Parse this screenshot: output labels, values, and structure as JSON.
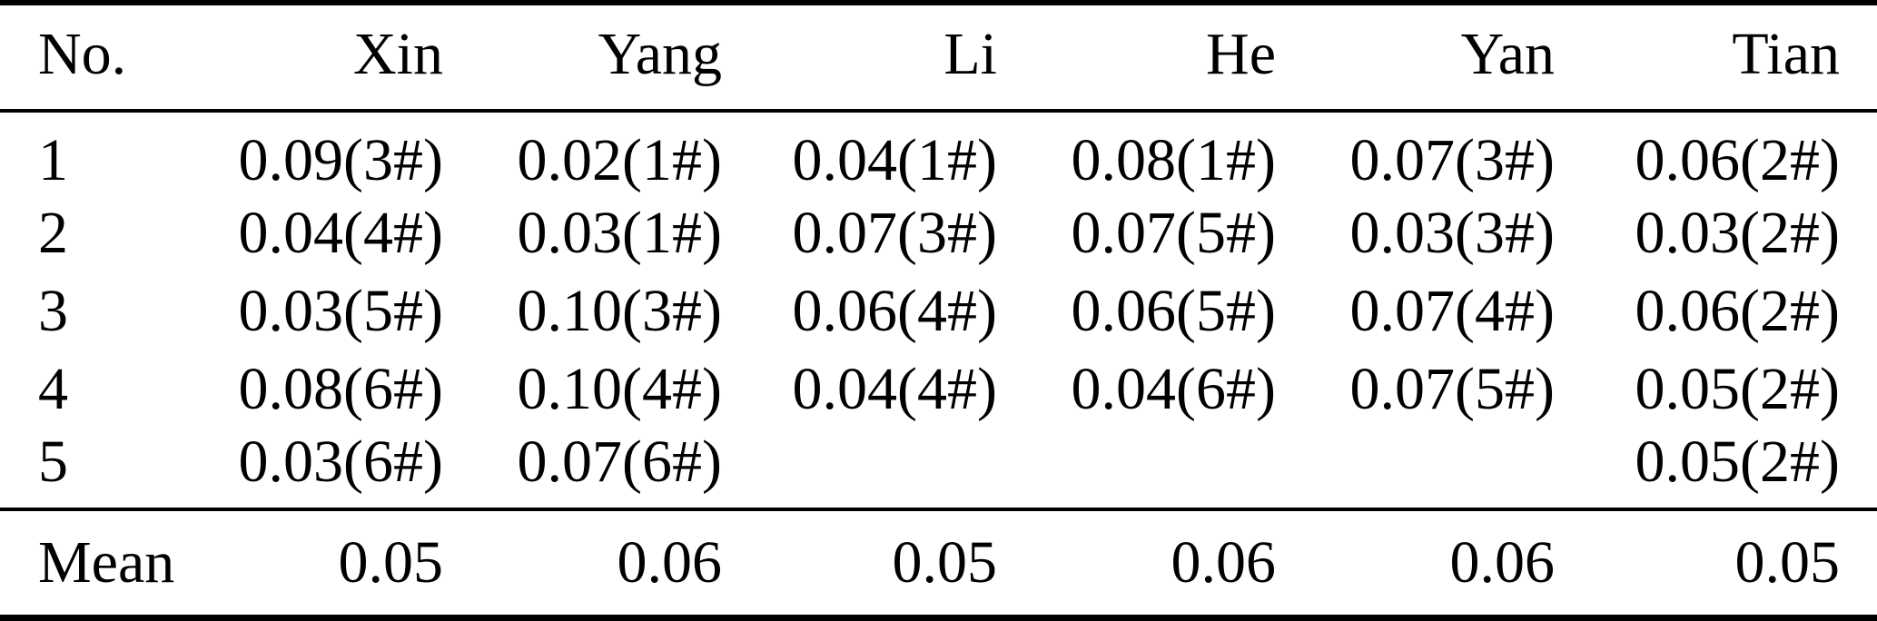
{
  "chart_data": {
    "type": "table",
    "title": "",
    "columns": [
      "No.",
      "Xin",
      "Yang",
      "Li",
      "He",
      "Yan",
      "Tian"
    ],
    "rows": [
      [
        "1",
        "0.09(3#)",
        "0.02(1#)",
        "0.04(1#)",
        "0.08(1#)",
        "0.07(3#)",
        "0.06(2#)"
      ],
      [
        "2",
        "0.04(4#)",
        "0.03(1#)",
        "0.07(3#)",
        "0.07(5#)",
        "0.03(3#)",
        "0.03(2#)"
      ],
      [
        "3",
        "0.03(5#)",
        "0.10(3#)",
        "0.06(4#)",
        "0.06(5#)",
        "0.07(4#)",
        "0.06(2#)"
      ],
      [
        "4",
        "0.08(6#)",
        "0.10(4#)",
        "0.04(4#)",
        "0.04(6#)",
        "0.07(5#)",
        "0.05(2#)"
      ],
      [
        "5",
        "0.03(6#)",
        "0.07(6#)",
        "",
        "",
        "",
        "0.05(2#)"
      ]
    ],
    "footer": [
      "Mean",
      "0.05",
      "0.06",
      "0.05",
      "0.06",
      "0.06",
      "0.05"
    ],
    "layout_hints": {
      "first_column_align": "left",
      "data_columns_align": "right",
      "grid": "horizontal-rules-only"
    }
  },
  "colors": {
    "text": "#000000",
    "background": "#ffffff",
    "rule": "#000000"
  }
}
